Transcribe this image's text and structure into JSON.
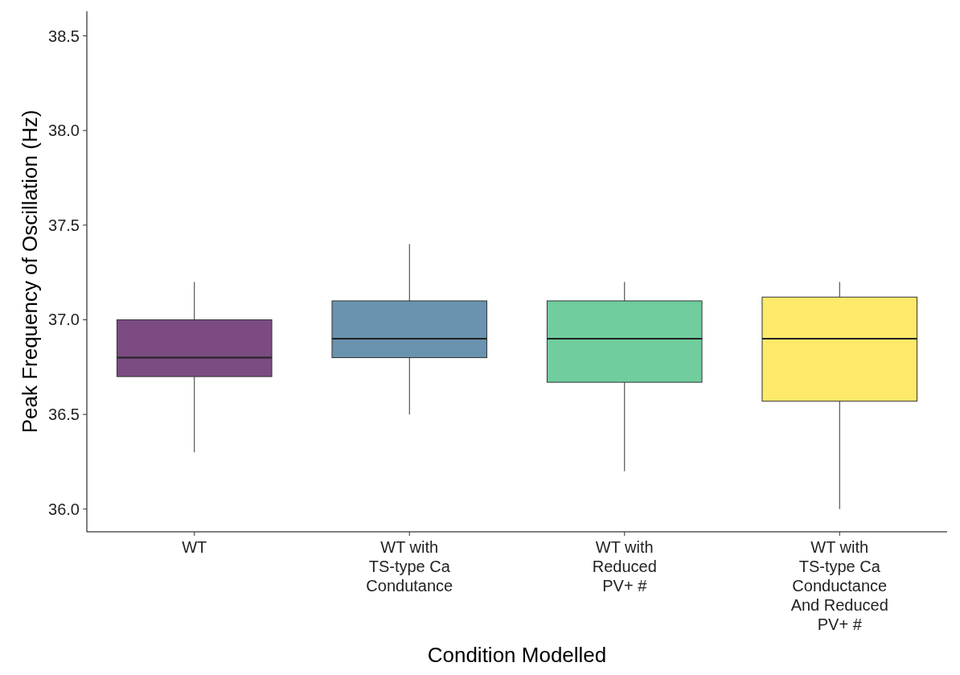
{
  "chart_data": {
    "type": "box",
    "xlabel": "Condition Modelled",
    "ylabel": "Peak Frequency of Oscillation (Hz)",
    "categories": [
      "WT",
      "WT with\nTS-type Ca\nCondutance",
      "WT with\nReduced\nPV+ #",
      "WT with\nTS-type Ca\nConductance\nAnd Reduced\nPV+ #"
    ],
    "colors": [
      "#7b4b82",
      "#6a93b0",
      "#70cd9e",
      "#fdea6a"
    ],
    "boxes": [
      {
        "low": 36.3,
        "q1": 36.7,
        "median": 36.8,
        "q3": 37.0,
        "high": 37.2
      },
      {
        "low": 36.5,
        "q1": 36.8,
        "median": 36.9,
        "q3": 37.1,
        "high": 37.4
      },
      {
        "low": 36.2,
        "q1": 36.67,
        "median": 36.9,
        "q3": 37.1,
        "high": 37.2
      },
      {
        "low": 36.0,
        "q1": 36.57,
        "median": 36.9,
        "q3": 37.12,
        "high": 37.2
      }
    ],
    "ylim": [
      35.88,
      38.63
    ],
    "yticks": [
      {
        "value": 36,
        "label": "36.0"
      },
      {
        "value": 36.5,
        "label": "36.5"
      },
      {
        "value": 37,
        "label": "37.0"
      },
      {
        "value": 37.5,
        "label": "37.5"
      },
      {
        "value": 38,
        "label": "38.0"
      },
      {
        "value": 38.5,
        "label": "38.5"
      }
    ],
    "grid": false
  }
}
